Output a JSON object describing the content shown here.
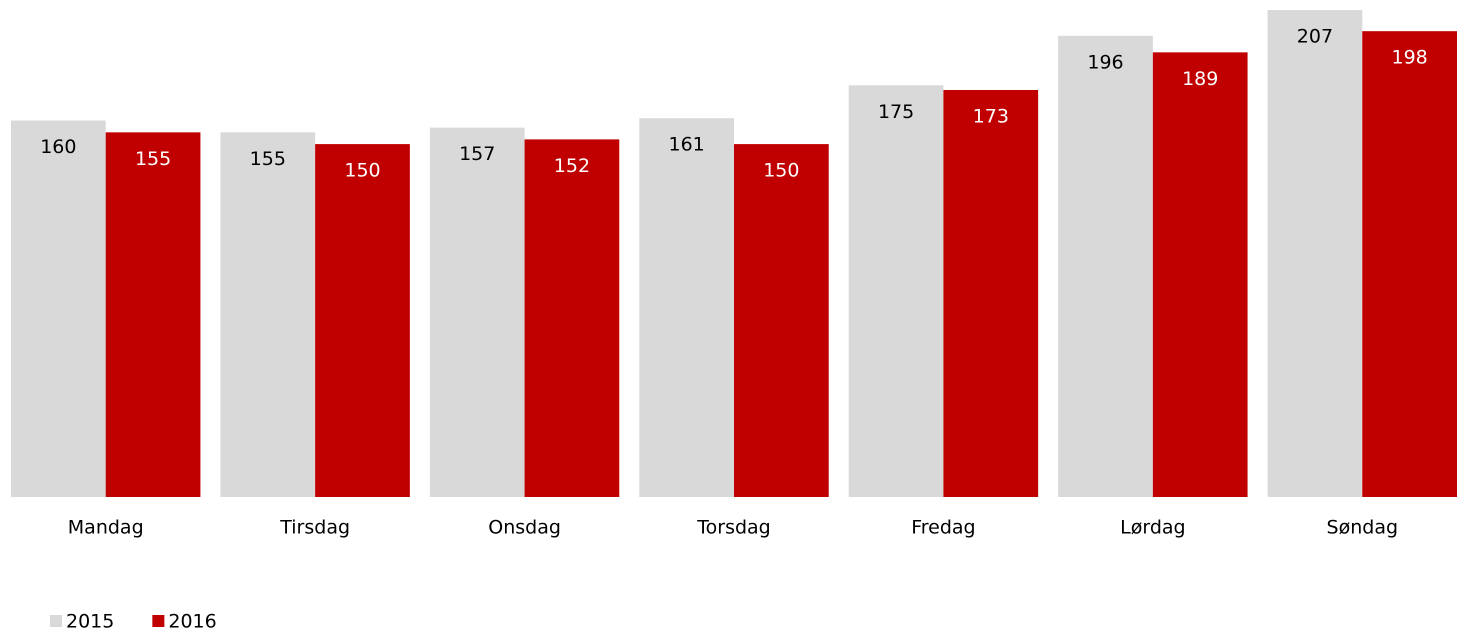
{
  "chart_data": {
    "type": "bar",
    "categories": [
      "Mandag",
      "Tirsdag",
      "Onsdag",
      "Torsdag",
      "Fredag",
      "Lørdag",
      "Søndag"
    ],
    "series": [
      {
        "name": "2015",
        "color": "#d9d9d9",
        "label_color": "#000000",
        "values": [
          160,
          155,
          157,
          161,
          175,
          196,
          207
        ]
      },
      {
        "name": "2016",
        "color": "#c00000",
        "label_color": "#ffffff",
        "values": [
          155,
          150,
          152,
          150,
          173,
          189,
          198
        ]
      }
    ],
    "legend": "bottom-left"
  }
}
